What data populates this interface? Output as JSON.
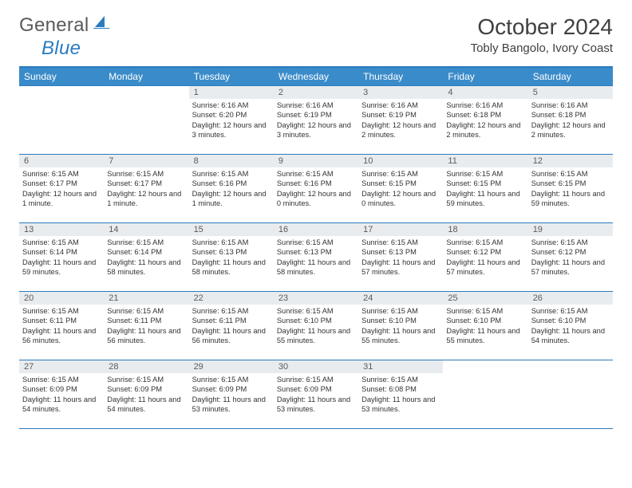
{
  "brand": {
    "word1": "General",
    "word2": "Blue"
  },
  "title": "October 2024",
  "location": "Tobly Bangolo, Ivory Coast",
  "colors": {
    "header_bg": "#3a8bc9",
    "border": "#2b7bbf",
    "daynum_bg": "#e9ecef",
    "text": "#333333",
    "logo_gray": "#5a5a5a",
    "logo_blue": "#2b7bbf",
    "page_bg": "#ffffff"
  },
  "calendar": {
    "day_headers": [
      "Sunday",
      "Monday",
      "Tuesday",
      "Wednesday",
      "Thursday",
      "Friday",
      "Saturday"
    ],
    "weeks": [
      [
        {
          "empty": true
        },
        {
          "empty": true
        },
        {
          "n": "1",
          "sunrise": "6:16 AM",
          "sunset": "6:20 PM",
          "daylight": "12 hours and 3 minutes."
        },
        {
          "n": "2",
          "sunrise": "6:16 AM",
          "sunset": "6:19 PM",
          "daylight": "12 hours and 3 minutes."
        },
        {
          "n": "3",
          "sunrise": "6:16 AM",
          "sunset": "6:19 PM",
          "daylight": "12 hours and 2 minutes."
        },
        {
          "n": "4",
          "sunrise": "6:16 AM",
          "sunset": "6:18 PM",
          "daylight": "12 hours and 2 minutes."
        },
        {
          "n": "5",
          "sunrise": "6:16 AM",
          "sunset": "6:18 PM",
          "daylight": "12 hours and 2 minutes."
        }
      ],
      [
        {
          "n": "6",
          "sunrise": "6:15 AM",
          "sunset": "6:17 PM",
          "daylight": "12 hours and 1 minute."
        },
        {
          "n": "7",
          "sunrise": "6:15 AM",
          "sunset": "6:17 PM",
          "daylight": "12 hours and 1 minute."
        },
        {
          "n": "8",
          "sunrise": "6:15 AM",
          "sunset": "6:16 PM",
          "daylight": "12 hours and 1 minute."
        },
        {
          "n": "9",
          "sunrise": "6:15 AM",
          "sunset": "6:16 PM",
          "daylight": "12 hours and 0 minutes."
        },
        {
          "n": "10",
          "sunrise": "6:15 AM",
          "sunset": "6:15 PM",
          "daylight": "12 hours and 0 minutes."
        },
        {
          "n": "11",
          "sunrise": "6:15 AM",
          "sunset": "6:15 PM",
          "daylight": "11 hours and 59 minutes."
        },
        {
          "n": "12",
          "sunrise": "6:15 AM",
          "sunset": "6:15 PM",
          "daylight": "11 hours and 59 minutes."
        }
      ],
      [
        {
          "n": "13",
          "sunrise": "6:15 AM",
          "sunset": "6:14 PM",
          "daylight": "11 hours and 59 minutes."
        },
        {
          "n": "14",
          "sunrise": "6:15 AM",
          "sunset": "6:14 PM",
          "daylight": "11 hours and 58 minutes."
        },
        {
          "n": "15",
          "sunrise": "6:15 AM",
          "sunset": "6:13 PM",
          "daylight": "11 hours and 58 minutes."
        },
        {
          "n": "16",
          "sunrise": "6:15 AM",
          "sunset": "6:13 PM",
          "daylight": "11 hours and 58 minutes."
        },
        {
          "n": "17",
          "sunrise": "6:15 AM",
          "sunset": "6:13 PM",
          "daylight": "11 hours and 57 minutes."
        },
        {
          "n": "18",
          "sunrise": "6:15 AM",
          "sunset": "6:12 PM",
          "daylight": "11 hours and 57 minutes."
        },
        {
          "n": "19",
          "sunrise": "6:15 AM",
          "sunset": "6:12 PM",
          "daylight": "11 hours and 57 minutes."
        }
      ],
      [
        {
          "n": "20",
          "sunrise": "6:15 AM",
          "sunset": "6:11 PM",
          "daylight": "11 hours and 56 minutes."
        },
        {
          "n": "21",
          "sunrise": "6:15 AM",
          "sunset": "6:11 PM",
          "daylight": "11 hours and 56 minutes."
        },
        {
          "n": "22",
          "sunrise": "6:15 AM",
          "sunset": "6:11 PM",
          "daylight": "11 hours and 56 minutes."
        },
        {
          "n": "23",
          "sunrise": "6:15 AM",
          "sunset": "6:10 PM",
          "daylight": "11 hours and 55 minutes."
        },
        {
          "n": "24",
          "sunrise": "6:15 AM",
          "sunset": "6:10 PM",
          "daylight": "11 hours and 55 minutes."
        },
        {
          "n": "25",
          "sunrise": "6:15 AM",
          "sunset": "6:10 PM",
          "daylight": "11 hours and 55 minutes."
        },
        {
          "n": "26",
          "sunrise": "6:15 AM",
          "sunset": "6:10 PM",
          "daylight": "11 hours and 54 minutes."
        }
      ],
      [
        {
          "n": "27",
          "sunrise": "6:15 AM",
          "sunset": "6:09 PM",
          "daylight": "11 hours and 54 minutes."
        },
        {
          "n": "28",
          "sunrise": "6:15 AM",
          "sunset": "6:09 PM",
          "daylight": "11 hours and 54 minutes."
        },
        {
          "n": "29",
          "sunrise": "6:15 AM",
          "sunset": "6:09 PM",
          "daylight": "11 hours and 53 minutes."
        },
        {
          "n": "30",
          "sunrise": "6:15 AM",
          "sunset": "6:09 PM",
          "daylight": "11 hours and 53 minutes."
        },
        {
          "n": "31",
          "sunrise": "6:15 AM",
          "sunset": "6:08 PM",
          "daylight": "11 hours and 53 minutes."
        },
        {
          "empty": true
        },
        {
          "empty": true
        }
      ]
    ]
  },
  "labels": {
    "sunrise": "Sunrise:",
    "sunset": "Sunset:",
    "daylight": "Daylight:"
  }
}
